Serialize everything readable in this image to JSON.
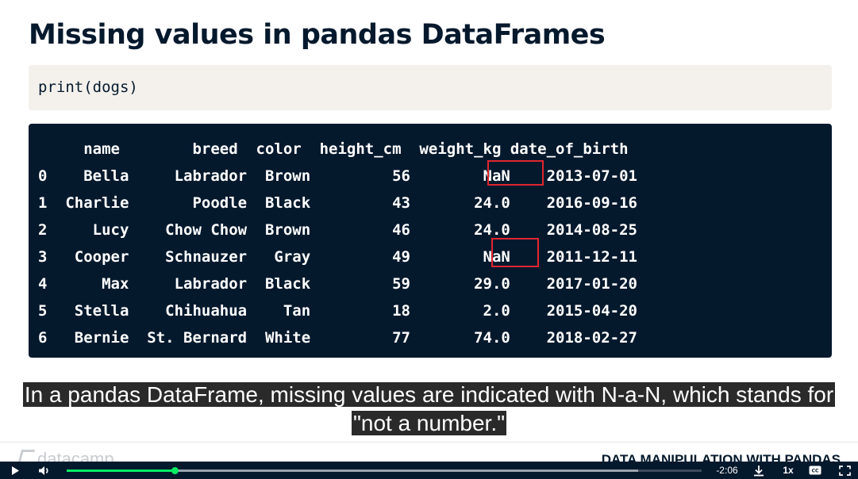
{
  "slide": {
    "title": "Missing values in pandas DataFrames",
    "code": "print(dogs)",
    "output_lines": [
      "     name        breed  color  height_cm  weight_kg date_of_birth",
      "0    Bella     Labrador  Brown         56        NaN    2013-07-01",
      "1  Charlie       Poodle  Black         43       24.0    2016-09-16",
      "2     Lucy    Chow Chow  Brown         46       24.0    2014-08-25",
      "3   Cooper    Schnauzer   Gray         49        NaN    2011-12-11",
      "4      Max     Labrador  Black         59       29.0    2017-01-20",
      "5   Stella    Chihuahua    Tan         18        2.0    2015-04-20",
      "6   Bernie  St. Bernard  White         77       74.0    2018-02-27"
    ],
    "highlight_color": "#e0262f",
    "footer_logo": "datacamp",
    "footer_course": "DATA MANIPULATION WITH PANDAS"
  },
  "caption": {
    "line1": "In a pandas DataFrame, missing values are indicated with N-a-N, which stands for",
    "line2": "\"not a number.\""
  },
  "player": {
    "play_icon": "play-icon",
    "volume_icon": "volume-icon",
    "progress_percent": 17,
    "buffered_percent": 90,
    "time_remaining": "-2:06",
    "download_icon": "download-icon",
    "speed": "1x",
    "captions_icon": "closed-captions-icon",
    "fullscreen_icon": "fullscreen-icon",
    "accent_color": "#03ef62"
  }
}
